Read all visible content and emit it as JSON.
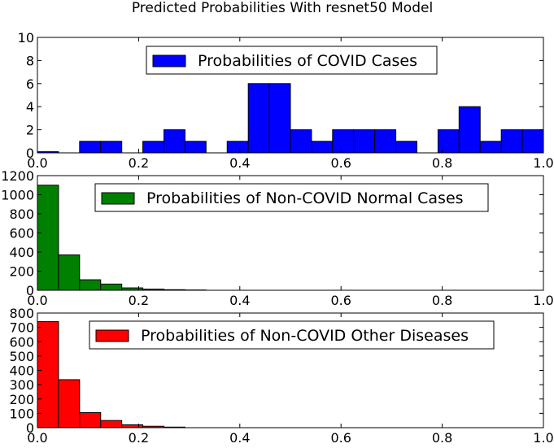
{
  "chart_data": {
    "title": "Predicted Probabilities With resnet50 Model",
    "subplots": [
      {
        "type": "bar",
        "legend": "Probabilities of COVID Cases",
        "color": "#0000ff",
        "bin_edges": [
          0.0,
          0.0417,
          0.0833,
          0.125,
          0.1667,
          0.2083,
          0.25,
          0.2917,
          0.3333,
          0.375,
          0.4167,
          0.4583,
          0.5,
          0.5417,
          0.5833,
          0.625,
          0.6667,
          0.7083,
          0.75,
          0.7917,
          0.8333,
          0.875,
          0.9167,
          0.9583,
          1.0
        ],
        "values": [
          0.1,
          0,
          1,
          1,
          0,
          1,
          2,
          1,
          0,
          1,
          6,
          6,
          2,
          1,
          2,
          2,
          2,
          1,
          0,
          2,
          4,
          1,
          2,
          2
        ],
        "xlim": [
          0,
          1
        ],
        "ylim": [
          0,
          10
        ],
        "xticks": [
          "0.0",
          "0.2",
          "0.4",
          "0.6",
          "0.8",
          "1.0"
        ],
        "yticks": [
          "0",
          "2",
          "4",
          "6",
          "8",
          "10"
        ],
        "ytick_values": [
          0,
          2,
          4,
          6,
          8,
          10
        ]
      },
      {
        "type": "bar",
        "legend": "Probabilities of Non-COVID Normal Cases",
        "color": "#008000",
        "bin_edges": [
          0.0,
          0.0417,
          0.0833,
          0.125,
          0.1667,
          0.2083,
          0.25,
          0.2917,
          0.3333
        ],
        "values": [
          1100,
          370,
          110,
          65,
          25,
          12,
          6,
          3
        ],
        "xlim": [
          0,
          1
        ],
        "ylim": [
          0,
          1200
        ],
        "xticks": [
          "0.0",
          "0.2",
          "0.4",
          "0.6",
          "0.8",
          "1.0"
        ],
        "yticks": [
          "0",
          "200",
          "400",
          "600",
          "800",
          "1000",
          "1200"
        ],
        "ytick_values": [
          0,
          200,
          400,
          600,
          800,
          1000,
          1200
        ]
      },
      {
        "type": "bar",
        "legend": "Probabilities of Non-COVID Other Diseases",
        "color": "#ff0000",
        "bin_edges": [
          0.0,
          0.0417,
          0.0833,
          0.125,
          0.1667,
          0.2083,
          0.25,
          0.2917
        ],
        "values": [
          740,
          335,
          105,
          50,
          20,
          10,
          4
        ],
        "xlim": [
          0,
          1
        ],
        "ylim": [
          0,
          800
        ],
        "xticks": [
          "0.0",
          "0.2",
          "0.4",
          "0.6",
          "0.8",
          "1.0"
        ],
        "yticks": [
          "0",
          "100",
          "200",
          "300",
          "400",
          "500",
          "600",
          "700",
          "800"
        ],
        "ytick_values": [
          0,
          100,
          200,
          300,
          400,
          500,
          600,
          700,
          800
        ]
      }
    ]
  }
}
